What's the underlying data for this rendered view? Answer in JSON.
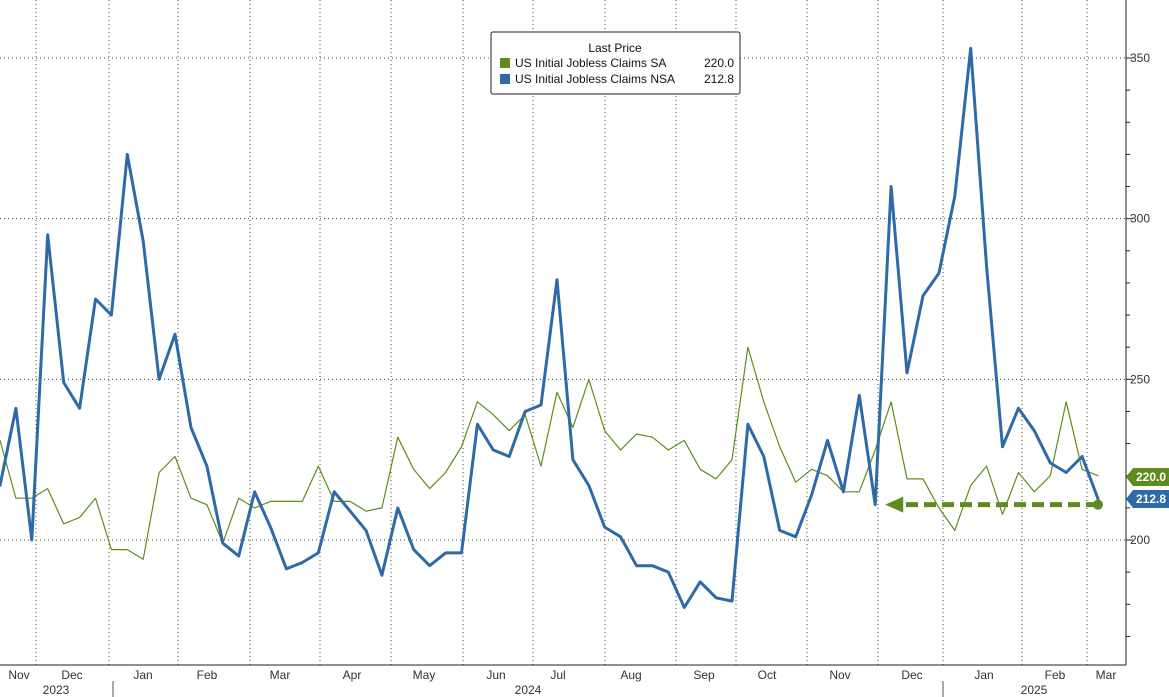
{
  "chart_data": {
    "type": "line",
    "title": "",
    "xlabel": "",
    "ylabel": "",
    "ylim": [
      165,
      355
    ],
    "y_ticks": [
      200,
      250,
      300,
      350
    ],
    "grid": true,
    "legend_position": "top-center",
    "legend_title": "Last Price",
    "x_month_labels": [
      "Nov",
      "Dec",
      "Jan",
      "Feb",
      "Mar",
      "Apr",
      "May",
      "Jun",
      "Jul",
      "Aug",
      "Sep",
      "Oct",
      "Nov",
      "Dec",
      "Jan",
      "Feb",
      "Mar"
    ],
    "x_year_labels": [
      "2023",
      "2024",
      "2025"
    ],
    "series": [
      {
        "name": "US Initial Jobless Claims SA",
        "last_label": "220.0",
        "color": "#5f8c1e",
        "values": [
          231,
          213,
          213,
          216,
          205,
          207,
          213,
          197,
          197,
          194,
          221,
          226,
          213,
          211,
          199,
          213,
          210,
          212,
          212,
          212,
          223,
          212,
          212,
          209,
          210,
          232,
          222,
          216,
          221,
          229,
          243,
          239,
          234,
          239,
          223,
          246,
          235,
          250,
          234,
          228,
          233,
          232,
          228,
          231,
          222,
          219,
          225,
          260,
          243,
          229,
          218,
          222,
          220,
          215,
          215,
          228,
          243,
          219,
          219,
          210,
          203,
          217,
          223,
          208,
          221,
          215,
          220,
          243,
          222,
          220
        ]
      },
      {
        "name": "US Initial Jobless Claims NSA",
        "last_label": "212.8",
        "color": "#2e69a8",
        "values": [
          217,
          241,
          200,
          295,
          249,
          241,
          275,
          270,
          320,
          293,
          250,
          264,
          235,
          223,
          199,
          195,
          215,
          204,
          191,
          193,
          196,
          215,
          209,
          203,
          189,
          210,
          197,
          192,
          196,
          196,
          236,
          228,
          226,
          240,
          242,
          281,
          225,
          217,
          204,
          201,
          192,
          192,
          190,
          179,
          187,
          182,
          181,
          236,
          226,
          203,
          201,
          214,
          231,
          215,
          245,
          211,
          310,
          252,
          276,
          283,
          307,
          353,
          285,
          229,
          241,
          234,
          224,
          221,
          226,
          212.8
        ]
      }
    ],
    "annotation": {
      "type": "dashed-arrow",
      "from_index": 69,
      "to_index": 55,
      "y": 211,
      "color": "#5f8c1e"
    }
  }
}
